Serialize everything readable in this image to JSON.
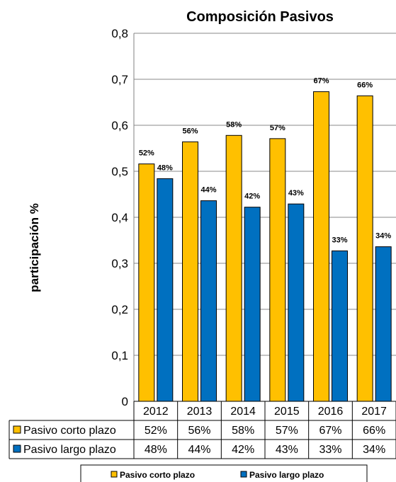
{
  "chart_data": {
    "type": "bar",
    "title": "Composición Pasivos",
    "ylabel": "participación %",
    "xlabel": "",
    "ylim": [
      0,
      0.8
    ],
    "yticks": [
      "0",
      "0,1",
      "0,2",
      "0,3",
      "0,4",
      "0,5",
      "0,6",
      "0,7",
      "0,8"
    ],
    "grid": true,
    "legend_position": "bottom",
    "categories": [
      "2012",
      "2013",
      "2014",
      "2015",
      "2016",
      "2017"
    ],
    "series": [
      {
        "name": "Pasivo corto plazo",
        "color": "#FFC000",
        "values": [
          0.516,
          0.564,
          0.578,
          0.571,
          0.673,
          0.664
        ],
        "labels": [
          "52%",
          "56%",
          "58%",
          "57%",
          "67%",
          "66%"
        ]
      },
      {
        "name": "Pasivo largo plazo",
        "color": "#0070C0",
        "values": [
          0.484,
          0.436,
          0.422,
          0.429,
          0.327,
          0.336
        ],
        "labels": [
          "48%",
          "44%",
          "42%",
          "43%",
          "33%",
          "34%"
        ]
      }
    ],
    "table_rows": [
      {
        "name": "Pasivo corto plazo",
        "cells": [
          "52%",
          "56%",
          "58%",
          "57%",
          "67%",
          "66%"
        ]
      },
      {
        "name": "Pasivo largo plazo",
        "cells": [
          "48%",
          "44%",
          "42%",
          "43%",
          "33%",
          "34%"
        ]
      }
    ]
  }
}
